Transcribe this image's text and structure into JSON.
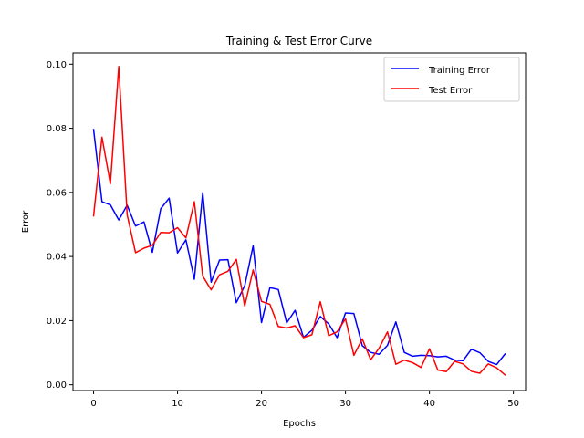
{
  "chart_data": {
    "type": "line",
    "title": "Training & Test Error Curve",
    "xlabel": "Epochs",
    "ylabel": "Error",
    "xlim": [
      -2.45,
      51.45
    ],
    "ylim": [
      -0.0018,
      0.1035
    ],
    "xticks": [
      0,
      10,
      20,
      30,
      40,
      50
    ],
    "xtick_labels": [
      "0",
      "10",
      "20",
      "30",
      "40",
      "50"
    ],
    "yticks": [
      0.0,
      0.02,
      0.04,
      0.06,
      0.08,
      0.1
    ],
    "ytick_labels": [
      "0.00",
      "0.02",
      "0.04",
      "0.06",
      "0.08",
      "0.10"
    ],
    "grid": false,
    "legend_position": "top-right",
    "x": [
      0,
      1,
      2,
      3,
      4,
      5,
      6,
      7,
      8,
      9,
      10,
      11,
      12,
      13,
      14,
      15,
      16,
      17,
      18,
      19,
      20,
      21,
      22,
      23,
      24,
      25,
      26,
      27,
      28,
      29,
      30,
      31,
      32,
      33,
      34,
      35,
      36,
      37,
      38,
      39,
      40,
      41,
      42,
      43,
      44,
      45,
      46,
      47,
      48,
      49
    ],
    "series": [
      {
        "name": "Training Error",
        "color": "#0000ff",
        "values": [
          0.0796,
          0.0571,
          0.0561,
          0.0514,
          0.056,
          0.0495,
          0.0508,
          0.0413,
          0.0549,
          0.0582,
          0.0411,
          0.0452,
          0.0329,
          0.0599,
          0.032,
          0.0389,
          0.039,
          0.0256,
          0.0309,
          0.0433,
          0.0194,
          0.0303,
          0.0297,
          0.0193,
          0.0232,
          0.0148,
          0.017,
          0.0213,
          0.019,
          0.0147,
          0.0224,
          0.0222,
          0.0122,
          0.0101,
          0.0095,
          0.0123,
          0.0196,
          0.0101,
          0.0089,
          0.0092,
          0.0091,
          0.0087,
          0.0089,
          0.0077,
          0.0075,
          0.0111,
          0.01,
          0.0073,
          0.0063,
          0.0096
        ]
      },
      {
        "name": "Test Error",
        "color": "#ff0000",
        "values": [
          0.0527,
          0.0772,
          0.0627,
          0.0993,
          0.053,
          0.0412,
          0.0426,
          0.0435,
          0.0475,
          0.0474,
          0.049,
          0.0458,
          0.0571,
          0.0339,
          0.0296,
          0.0343,
          0.0354,
          0.0391,
          0.0246,
          0.0358,
          0.026,
          0.0251,
          0.0182,
          0.0177,
          0.0184,
          0.0147,
          0.0156,
          0.0259,
          0.0153,
          0.0165,
          0.0206,
          0.0092,
          0.0143,
          0.0078,
          0.0114,
          0.0165,
          0.0064,
          0.0077,
          0.0069,
          0.0054,
          0.0112,
          0.0046,
          0.0041,
          0.0073,
          0.0065,
          0.0042,
          0.0036,
          0.0065,
          0.0053,
          0.0031
        ]
      }
    ]
  }
}
